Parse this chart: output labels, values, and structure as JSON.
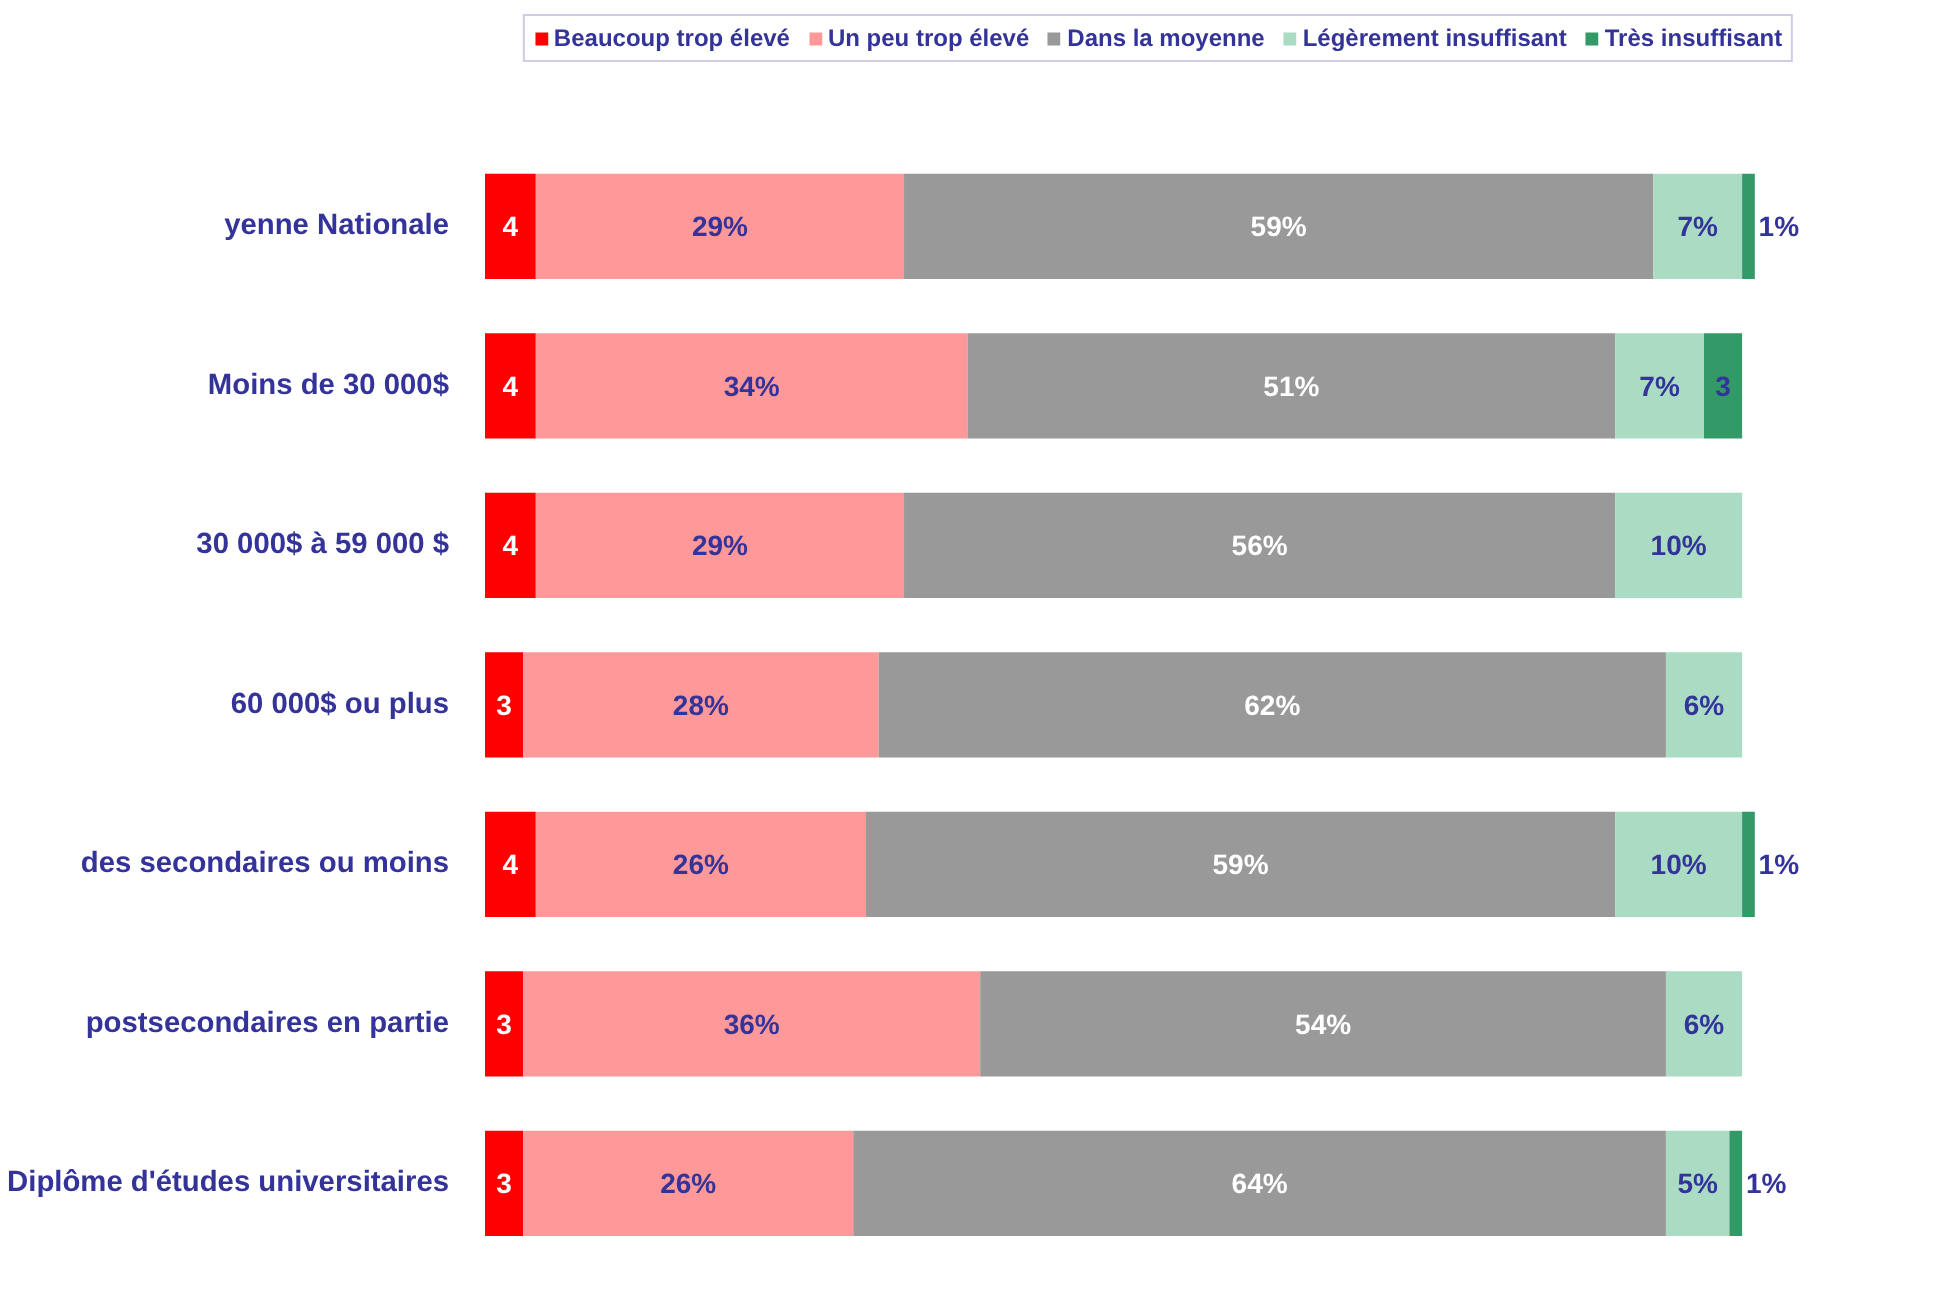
{
  "chart_data": {
    "type": "bar",
    "orientation": "horizontal",
    "stacked": true,
    "categories": [
      "yenne Nationale",
      "Moins de 30 000$",
      "30 000$ à 59 000 $",
      "60 000$ ou plus",
      "des secondaires ou moins",
      "postsecondaires en partie",
      "Diplôme d'études universitaires"
    ],
    "tick_labels": "y",
    "legend": "top",
    "grid": false,
    "series": [
      {
        "name": "Beaucoup trop élevé",
        "color": "#ff0000",
        "values": [
          4,
          4,
          4,
          3,
          4,
          3,
          3
        ],
        "value_labels": [
          "4",
          "4",
          "4",
          "3",
          "4",
          "3",
          "3"
        ]
      },
      {
        "name": "Un peu trop élevé",
        "color": "#ff9999",
        "values": [
          29,
          34,
          29,
          28,
          26,
          36,
          26
        ],
        "value_labels": [
          "29%",
          "34%",
          "29%",
          "28%",
          "26%",
          "36%",
          "26%"
        ]
      },
      {
        "name": "Dans la moyenne",
        "color": "#999999",
        "values": [
          59,
          51,
          56,
          62,
          59,
          54,
          64
        ],
        "value_labels": [
          "59%",
          "51%",
          "56%",
          "62%",
          "59%",
          "54%",
          "64%"
        ]
      },
      {
        "name": "Légèrement insuffisant",
        "color": "#a9dcc3",
        "values": [
          7,
          7,
          10,
          6,
          10,
          6,
          5
        ],
        "value_labels": [
          "7%",
          "7%",
          "10%",
          "6%",
          "10%",
          "6%",
          "5%"
        ]
      },
      {
        "name": "Très insuffisant",
        "color": "#339966",
        "values": [
          1,
          3,
          null,
          null,
          1,
          null,
          1
        ],
        "value_labels": [
          "1%",
          "3",
          null,
          null,
          "1%",
          null,
          "1%"
        ]
      }
    ]
  }
}
